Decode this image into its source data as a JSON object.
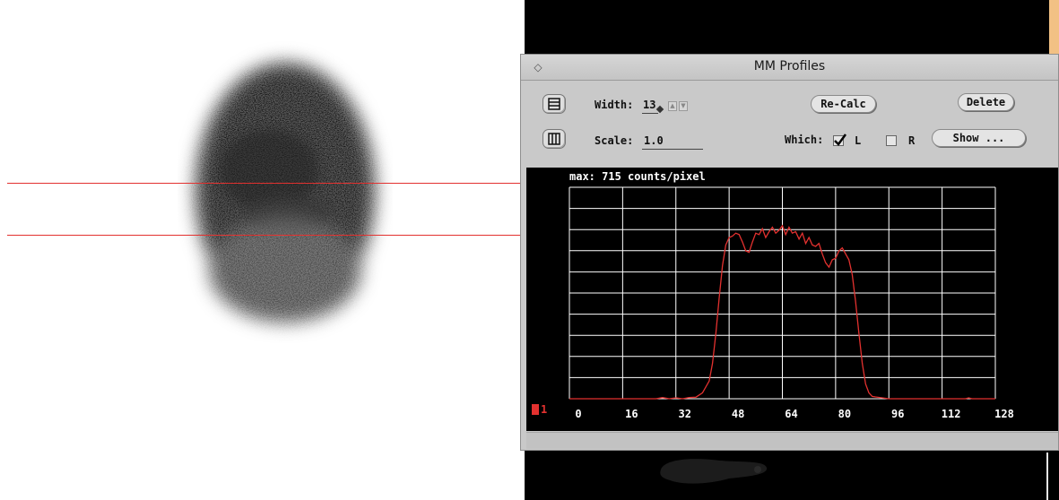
{
  "window": {
    "title": "MM Profiles"
  },
  "controls": {
    "width_label": "Width:",
    "width_value": "13",
    "scale_label": "Scale:",
    "scale_value": "1.0",
    "recalc_label": "Re-Calc",
    "delete_label": "Delete",
    "show_label": "Show ...",
    "which_label": "Which:",
    "left_option": "L",
    "left_checked": true,
    "right_option": "R",
    "right_checked": false,
    "row_mode_icon": "horizontal-lines-icon",
    "column_mode_icon": "vertical-lines-icon"
  },
  "chart_data": {
    "type": "line",
    "title": "max: 715 counts/pixel",
    "xlabel": "",
    "ylabel": "",
    "xlim": [
      0,
      128
    ],
    "ylim": [
      0,
      715
    ],
    "x_ticks": [
      "0",
      "16",
      "32",
      "48",
      "64",
      "80",
      "96",
      "112",
      "128"
    ],
    "grid": true,
    "colors": {
      "line": "#e3312f",
      "grid": "#ffffff",
      "background": "#000000"
    },
    "series": [
      {
        "label": "1",
        "x": [
          0,
          10,
          20,
          26,
          28,
          30,
          32,
          34,
          36,
          38,
          40,
          42,
          43,
          44,
          45,
          46,
          47,
          48,
          49,
          50,
          51,
          52,
          53,
          54,
          55,
          56,
          57,
          58,
          59,
          60,
          61,
          62,
          63,
          64,
          65,
          66,
          67,
          68,
          69,
          70,
          71,
          72,
          73,
          74,
          75,
          76,
          77,
          78,
          79,
          80,
          81,
          82,
          83,
          84,
          85,
          86,
          87,
          88,
          89,
          90,
          91,
          92,
          94,
          96,
          100,
          104,
          110,
          119,
          120,
          121,
          128
        ],
        "y": [
          0,
          0,
          0,
          0,
          4,
          0,
          3,
          0,
          4,
          5,
          20,
          60,
          120,
          220,
          340,
          450,
          520,
          545,
          550,
          560,
          555,
          530,
          500,
          495,
          530,
          560,
          555,
          575,
          545,
          565,
          580,
          560,
          570,
          585,
          555,
          580,
          560,
          565,
          540,
          560,
          525,
          545,
          520,
          515,
          525,
          490,
          460,
          445,
          470,
          475,
          500,
          510,
          490,
          470,
          420,
          330,
          220,
          120,
          50,
          20,
          8,
          6,
          3,
          0,
          0,
          0,
          0,
          0,
          3,
          0,
          0
        ]
      }
    ]
  }
}
